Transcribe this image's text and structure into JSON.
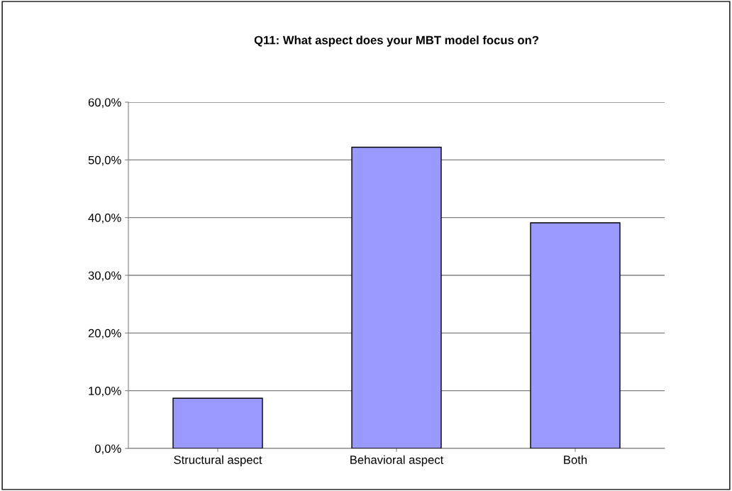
{
  "chart_data": {
    "type": "bar",
    "title": "Q11: What aspect does your MBT model focus on?",
    "categories": [
      "Structural aspect",
      "Behavioral aspect",
      "Both"
    ],
    "values": [
      8.7,
      52.2,
      39.1
    ],
    "color": "#9999ff",
    "ylim": [
      0,
      60
    ],
    "yticks": [
      {
        "value": 0,
        "label": "0,0%"
      },
      {
        "value": 10,
        "label": "10,0%"
      },
      {
        "value": 20,
        "label": "20,0%"
      },
      {
        "value": 30,
        "label": "30,0%"
      },
      {
        "value": 40,
        "label": "40,0%"
      },
      {
        "value": 50,
        "label": "50,0%"
      },
      {
        "value": 60,
        "label": "60,0%"
      }
    ],
    "grid": "y",
    "legend": false
  }
}
